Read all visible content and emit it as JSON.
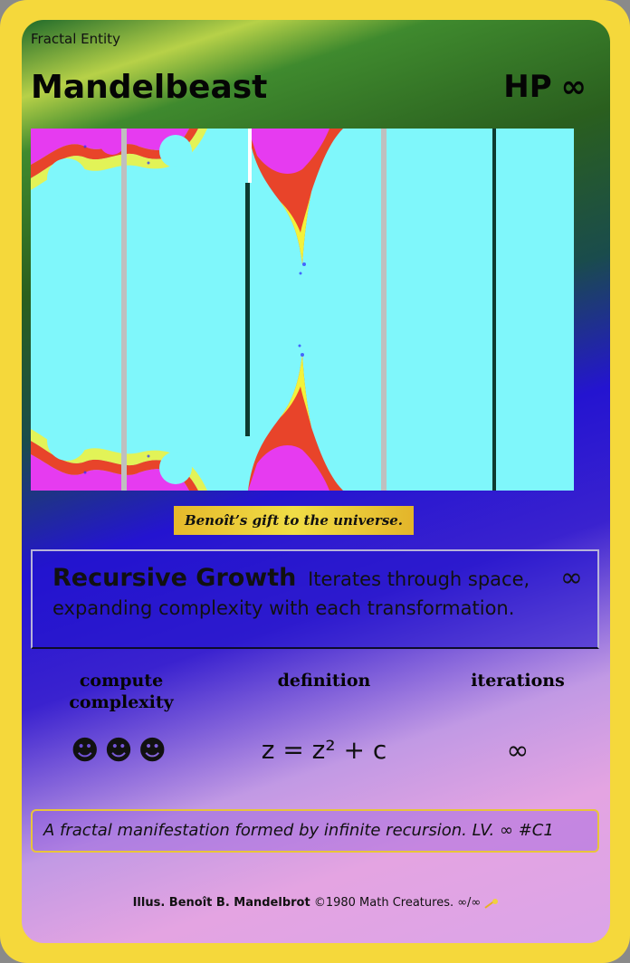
{
  "card": {
    "type_label": "Fractal Entity",
    "name": "Mandelbeast",
    "hp_label": "HP",
    "hp_value": "∞",
    "caption": "Benoît’s gift to the universe.",
    "ability": {
      "name": "Recursive Growth",
      "text": "Iterates through space, expanding complexity with each transformation.",
      "cost": "∞"
    },
    "stats": [
      {
        "label": "compute complexity",
        "value": "☻☻☻"
      },
      {
        "label": "definition",
        "value": "z = z² + c"
      },
      {
        "label": "iterations",
        "value": "∞"
      }
    ],
    "flavor": "A fractal manifestation formed by infinite recursion. LV. ∞ #C1",
    "footer": {
      "illustrator": "Illus. Benoît B. Mandelbrot",
      "rest": "©1980 Math Creatures. ∞/∞"
    },
    "colors": {
      "border": "#f5d83b",
      "art_background": "#7ff7fb",
      "fractal_magenta": "#e63bf0",
      "fractal_red": "#e8442a",
      "fractal_yellow": "#f3f23a"
    }
  }
}
